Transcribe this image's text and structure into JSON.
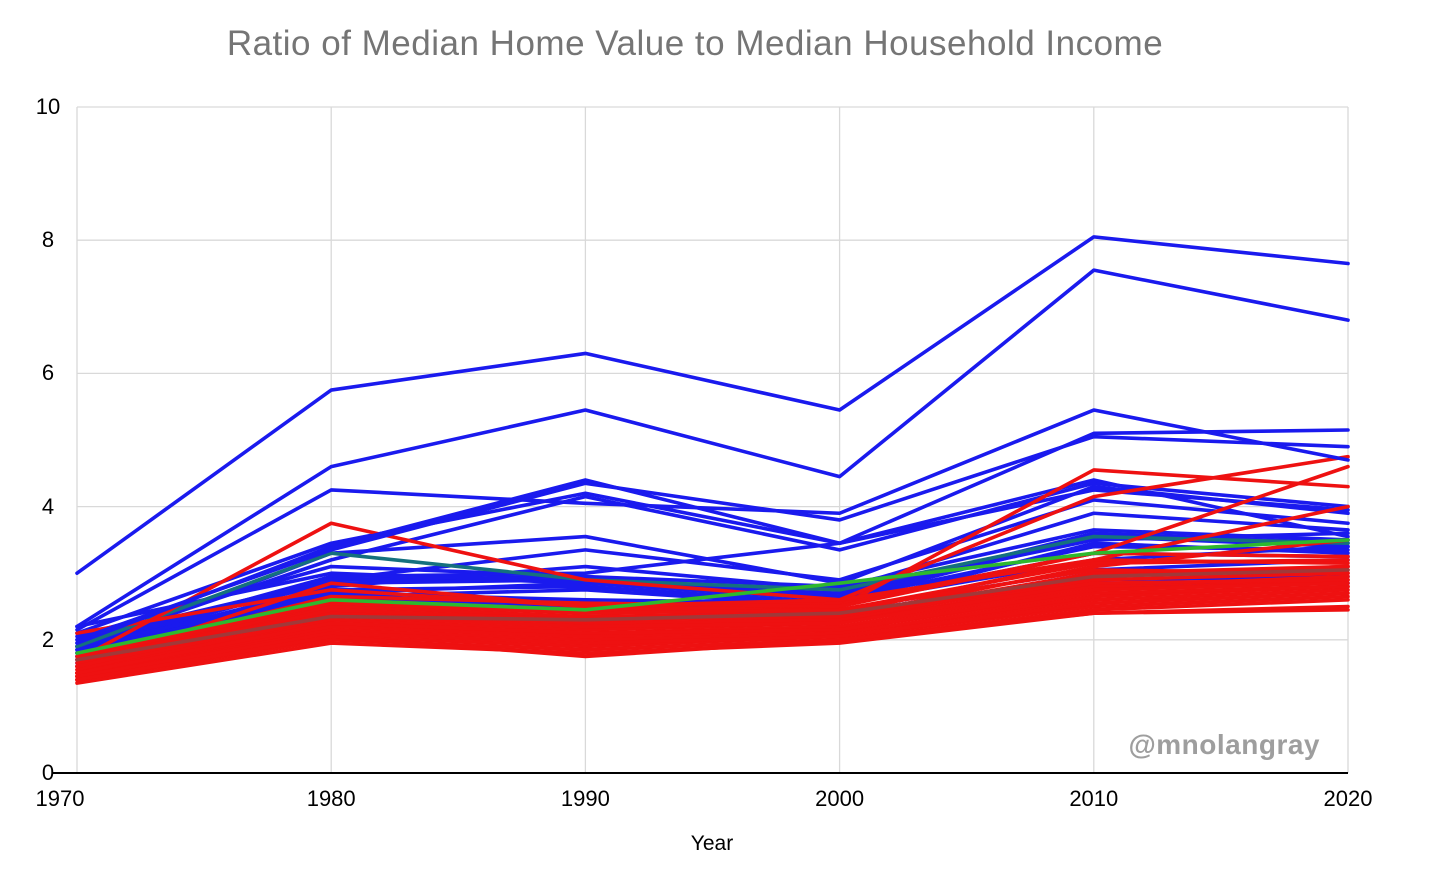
{
  "chart": {
    "title": "Ratio of Median Home Value to Median Household Income",
    "xlabel": "Year",
    "watermark": "@mnolangray",
    "colors": {
      "blue": "#1a1aee",
      "red": "#ee1111",
      "green": "#2eb82e",
      "dark_red": "#a03939",
      "teal": "#15707e",
      "grid": "#d9d9d9",
      "axis": "#000000",
      "title_text": "#757575",
      "tick_text": "#000000",
      "watermark_text": "#9e9e9e"
    }
  },
  "chart_data": {
    "type": "line",
    "title": "Ratio of Median Home Value to Median Household Income",
    "xlabel": "Year",
    "ylabel": "",
    "x": [
      1970,
      1980,
      1990,
      2000,
      2010,
      2020
    ],
    "xticks": [
      1970,
      1980,
      1990,
      2000,
      2010,
      2020
    ],
    "yticks": [
      0,
      2,
      4,
      6,
      8,
      10
    ],
    "ylim": [
      0,
      10
    ],
    "xlim": [
      1970,
      2020
    ],
    "grid": true,
    "legend": "none",
    "series": [
      {
        "name": "line-01",
        "color": "blue",
        "values": [
          1.9,
          3.2,
          4.15,
          3.35,
          4.35,
          4.0
        ]
      },
      {
        "name": "line-02",
        "color": "blue",
        "values": [
          1.85,
          3.3,
          3.55,
          2.85,
          4.3,
          3.9
        ]
      },
      {
        "name": "line-03",
        "color": "blue",
        "values": [
          2.1,
          3.45,
          4.2,
          3.45,
          4.4,
          3.55
        ]
      },
      {
        "name": "line-04",
        "color": "blue",
        "values": [
          1.9,
          2.95,
          3.0,
          3.45,
          4.25,
          3.95
        ]
      },
      {
        "name": "line-05",
        "color": "blue",
        "values": [
          2.05,
          3.1,
          2.95,
          2.8,
          3.65,
          3.5
        ]
      },
      {
        "name": "line-06",
        "color": "blue",
        "values": [
          1.85,
          2.9,
          2.95,
          2.65,
          3.6,
          3.45
        ]
      },
      {
        "name": "line-07",
        "color": "blue",
        "values": [
          1.95,
          2.85,
          2.9,
          2.6,
          3.4,
          3.35
        ]
      },
      {
        "name": "line-08",
        "color": "blue",
        "values": [
          1.8,
          2.75,
          2.8,
          2.55,
          3.3,
          3.25
        ]
      },
      {
        "name": "line-09",
        "color": "blue",
        "values": [
          1.9,
          2.7,
          2.6,
          2.55,
          3.2,
          3.4
        ]
      },
      {
        "name": "line-10",
        "color": "blue",
        "values": [
          1.75,
          2.6,
          2.55,
          2.45,
          3.05,
          3.2
        ]
      },
      {
        "name": "line-11",
        "color": "blue",
        "values": [
          1.7,
          2.55,
          2.5,
          2.4,
          2.95,
          3.1
        ]
      },
      {
        "name": "line-12",
        "color": "blue",
        "values": [
          1.65,
          2.5,
          2.45,
          2.35,
          2.9,
          2.95
        ]
      },
      {
        "name": "line-13",
        "color": "blue",
        "values": [
          1.8,
          2.65,
          2.75,
          2.5,
          3.45,
          3.3
        ]
      },
      {
        "name": "line-14",
        "color": "blue",
        "values": [
          2.2,
          3.0,
          2.85,
          2.7,
          3.5,
          3.6
        ]
      },
      {
        "name": "line-15",
        "color": "blue",
        "values": [
          1.6,
          2.4,
          2.35,
          2.3,
          2.8,
          2.85
        ]
      },
      {
        "name": "line-16",
        "color": "blue",
        "values": [
          1.85,
          2.8,
          3.1,
          2.75,
          3.9,
          3.65
        ]
      },
      {
        "name": "line-17",
        "color": "blue",
        "values": [
          2.0,
          2.9,
          3.35,
          2.9,
          4.1,
          3.75
        ]
      },
      {
        "name": "line-18",
        "color": "blue",
        "values": [
          1.75,
          2.7,
          2.85,
          2.6,
          3.55,
          3.4
        ]
      },
      {
        "name": "line-19",
        "color": "teal",
        "values": [
          1.9,
          3.3,
          2.9,
          2.75,
          3.55,
          3.45
        ]
      },
      {
        "name": "line-20",
        "color": "red",
        "values": [
          1.7,
          3.75,
          2.9,
          2.6,
          4.15,
          4.75
        ]
      },
      {
        "name": "line-21",
        "color": "red",
        "values": [
          1.6,
          2.85,
          2.5,
          2.55,
          3.3,
          4.6
        ]
      },
      {
        "name": "line-22",
        "color": "red",
        "values": [
          1.65,
          2.6,
          2.45,
          2.5,
          4.55,
          4.3
        ]
      },
      {
        "name": "line-23",
        "color": "red",
        "values": [
          1.55,
          2.5,
          2.35,
          2.4,
          3.2,
          4.0
        ]
      },
      {
        "name": "line-24",
        "color": "red",
        "values": [
          1.5,
          2.45,
          2.3,
          2.35,
          3.1,
          3.5
        ]
      },
      {
        "name": "line-25",
        "color": "red",
        "values": [
          1.6,
          2.55,
          2.45,
          2.45,
          3.15,
          3.2
        ]
      },
      {
        "name": "line-26",
        "color": "red",
        "values": [
          1.45,
          2.35,
          2.2,
          2.3,
          2.95,
          3.1
        ]
      },
      {
        "name": "line-27",
        "color": "red",
        "values": [
          1.5,
          2.3,
          2.15,
          2.25,
          2.9,
          3.0
        ]
      },
      {
        "name": "line-28",
        "color": "red",
        "values": [
          1.55,
          2.4,
          2.25,
          2.3,
          3.0,
          3.05
        ]
      },
      {
        "name": "line-29",
        "color": "red",
        "values": [
          1.4,
          2.2,
          2.05,
          2.15,
          2.75,
          2.9
        ]
      },
      {
        "name": "line-30",
        "color": "red",
        "values": [
          1.45,
          2.25,
          2.1,
          2.2,
          2.8,
          2.95
        ]
      },
      {
        "name": "line-31",
        "color": "red",
        "values": [
          1.5,
          2.35,
          2.2,
          2.25,
          2.85,
          2.9
        ]
      },
      {
        "name": "line-32",
        "color": "red",
        "values": [
          1.4,
          2.1,
          1.95,
          2.1,
          2.6,
          2.75
        ]
      },
      {
        "name": "line-33",
        "color": "red",
        "values": [
          1.45,
          2.15,
          2.0,
          2.1,
          2.65,
          2.8
        ]
      },
      {
        "name": "line-34",
        "color": "red",
        "values": [
          1.5,
          2.2,
          2.05,
          2.15,
          2.7,
          2.8
        ]
      },
      {
        "name": "line-35",
        "color": "red",
        "values": [
          1.4,
          2.05,
          1.9,
          2.05,
          2.5,
          2.65
        ]
      },
      {
        "name": "line-36",
        "color": "red",
        "values": [
          1.45,
          2.1,
          1.95,
          2.05,
          2.55,
          2.7
        ]
      },
      {
        "name": "line-37",
        "color": "red",
        "values": [
          1.4,
          2.0,
          1.85,
          2.0,
          2.45,
          2.6
        ]
      },
      {
        "name": "line-38",
        "color": "red",
        "values": [
          1.35,
          1.95,
          1.8,
          1.95,
          2.4,
          2.5
        ]
      },
      {
        "name": "line-39",
        "color": "red",
        "values": [
          1.4,
          2.05,
          1.75,
          2.0,
          2.4,
          2.45
        ]
      },
      {
        "name": "line-40",
        "color": "red",
        "values": [
          1.5,
          2.25,
          2.1,
          2.15,
          2.75,
          2.85
        ]
      },
      {
        "name": "line-41",
        "color": "red",
        "values": [
          1.6,
          2.45,
          2.3,
          2.35,
          3.0,
          3.1
        ]
      },
      {
        "name": "line-42",
        "color": "red",
        "values": [
          1.7,
          2.65,
          2.55,
          2.5,
          3.3,
          3.25
        ]
      },
      {
        "name": "line-43",
        "color": "red",
        "values": [
          2.1,
          2.75,
          2.5,
          2.6,
          3.2,
          3.15
        ]
      },
      {
        "name": "line-44",
        "color": "red",
        "values": [
          1.75,
          2.55,
          2.4,
          2.45,
          3.05,
          3.0
        ]
      },
      {
        "name": "line-45",
        "color": "green",
        "values": [
          1.8,
          2.6,
          2.45,
          2.85,
          3.3,
          3.5
        ]
      },
      {
        "name": "line-46",
        "color": "dark_red",
        "values": [
          1.7,
          2.35,
          2.3,
          2.4,
          2.95,
          3.05
        ]
      },
      {
        "name": "line-47",
        "color": "blue",
        "values": [
          2.15,
          4.25,
          4.05,
          3.9,
          5.45,
          4.7
        ]
      },
      {
        "name": "line-48",
        "color": "blue",
        "values": [
          1.95,
          3.4,
          4.4,
          3.45,
          5.1,
          5.15
        ]
      },
      {
        "name": "line-49",
        "color": "blue",
        "values": [
          2.0,
          3.35,
          4.35,
          3.8,
          5.05,
          4.9
        ]
      },
      {
        "name": "line-50",
        "color": "blue",
        "values": [
          2.2,
          4.6,
          5.45,
          4.45,
          7.55,
          6.8
        ]
      },
      {
        "name": "line-51",
        "color": "blue",
        "values": [
          3.0,
          5.75,
          6.3,
          5.45,
          8.05,
          7.65
        ]
      }
    ]
  }
}
